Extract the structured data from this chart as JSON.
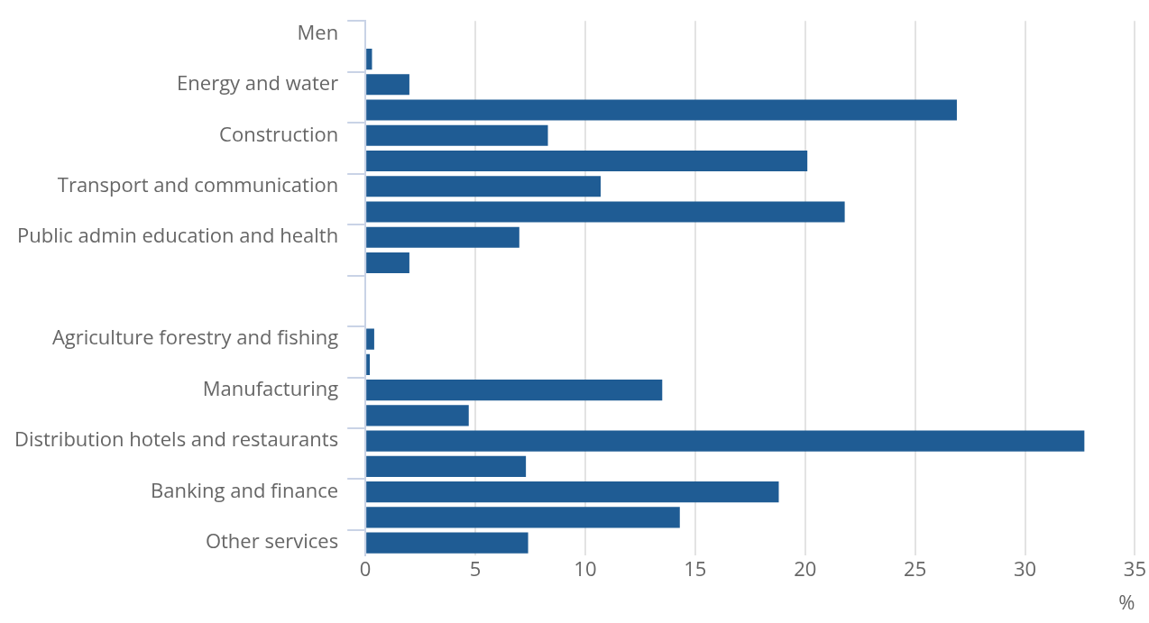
{
  "chart_data": {
    "type": "bar",
    "orientation": "horizontal",
    "xlabel": "%",
    "categories": [
      "Men",
      null,
      "Energy and water",
      null,
      "Construction",
      null,
      "Transport and communication",
      null,
      "Public admin education and health",
      null,
      null,
      null,
      "Agriculture forestry and fishing",
      null,
      "Manufacturing",
      null,
      "Distribution hotels and restaurants",
      null,
      "Banking and finance",
      null,
      "Other services"
    ],
    "values": [
      null,
      0.3,
      2.0,
      26.9,
      8.3,
      20.1,
      10.7,
      21.8,
      7.0,
      2.0,
      null,
      null,
      0.4,
      0.2,
      13.5,
      4.7,
      32.7,
      7.3,
      18.8,
      14.3,
      7.4
    ],
    "color": "#1f5c94",
    "xlim": [
      0,
      35
    ],
    "xticks": [
      0,
      5,
      10,
      15,
      20,
      25,
      30,
      35
    ],
    "grid": "x",
    "legend": false
  }
}
